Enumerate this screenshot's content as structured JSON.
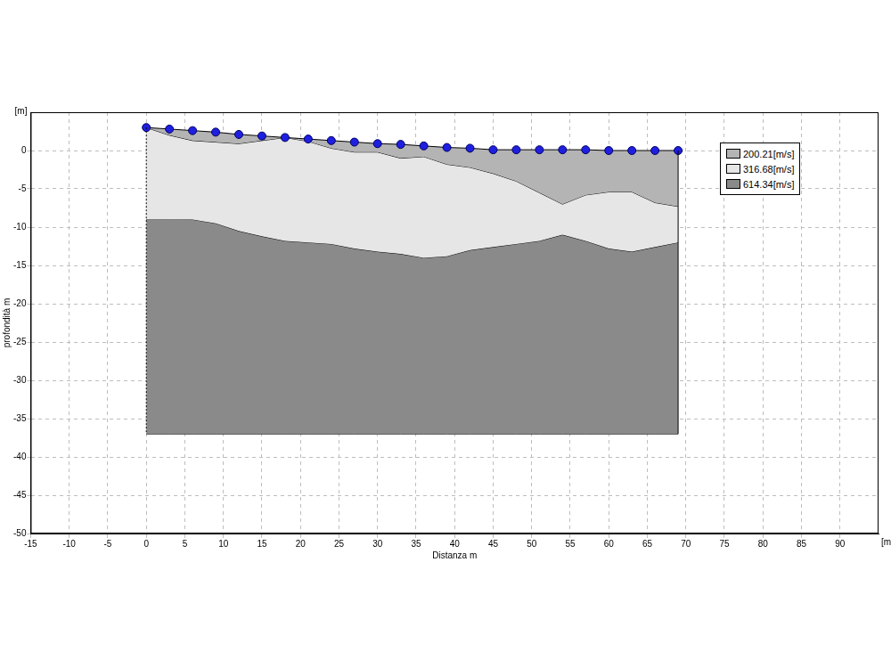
{
  "chart_data": {
    "type": "layered_section",
    "x_label": "Distanza m",
    "y_label": "profondità m",
    "axis_units": {
      "x": "[m]",
      "y": "[m]"
    },
    "xlim": [
      -15,
      95
    ],
    "xticks": [
      -15,
      -10,
      -5,
      0,
      5,
      10,
      15,
      20,
      25,
      30,
      35,
      40,
      45,
      50,
      55,
      60,
      65,
      70,
      75,
      80,
      85,
      90
    ],
    "ylim": [
      -50,
      5
    ],
    "yticks": [
      -50,
      -45,
      -40,
      -35,
      -30,
      -25,
      -20,
      -15,
      -10,
      -5,
      0
    ],
    "grid": true,
    "legend": "top-right",
    "x": [
      0,
      3,
      6,
      9,
      12,
      15,
      18,
      21,
      24,
      27,
      30,
      33,
      36,
      39,
      42,
      45,
      48,
      51,
      54,
      57,
      60,
      63,
      66,
      69
    ],
    "series": [
      {
        "name": "200.21[m/s]",
        "color": "#b4b4b4",
        "values": [
          3,
          2.8,
          2.6,
          2.4,
          2.1,
          1.9,
          1.7,
          1.5,
          1.3,
          1.1,
          0.9,
          0.8,
          0.6,
          0.4,
          0.3,
          0.1,
          0.1,
          0.1,
          0.1,
          0.1,
          0,
          0,
          0,
          0
        ]
      },
      {
        "name": "316.68[m/s]",
        "color": "#e6e6e6",
        "values": [
          3,
          2.0,
          1.3,
          1.1,
          0.9,
          1.3,
          1.7,
          1.2,
          0.3,
          -0.2,
          -0.2,
          -1.0,
          -0.8,
          -1.8,
          -2.2,
          -3.0,
          -4.0,
          -5.5,
          -7.0,
          -5.8,
          -5.4,
          -5.4,
          -6.8,
          -7.3
        ]
      },
      {
        "name": "614.34[m/s]",
        "color": "#8a8a8a",
        "values": [
          -9.0,
          -9.0,
          -9.0,
          -9.5,
          -10.5,
          -11.2,
          -11.8,
          -12.0,
          -12.2,
          -12.8,
          -13.2,
          -13.5,
          -14.0,
          -13.8,
          -13.0,
          -12.6,
          -12.2,
          -11.8,
          -11.0,
          -11.8,
          -12.8,
          -13.2,
          -12.6,
          -12.0
        ]
      }
    ],
    "base": -37,
    "geophones": {
      "color": "#1f1fe0",
      "marker": "circle",
      "x": [
        0,
        3,
        6,
        9,
        12,
        15,
        18,
        21,
        24,
        27,
        30,
        33,
        36,
        39,
        42,
        45,
        48,
        51,
        54,
        57,
        60,
        63,
        66,
        69
      ],
      "elevation": [
        3,
        2.8,
        2.6,
        2.4,
        2.1,
        1.9,
        1.7,
        1.5,
        1.3,
        1.1,
        0.9,
        0.8,
        0.6,
        0.4,
        0.3,
        0.1,
        0.1,
        0.1,
        0.1,
        0.1,
        0,
        0,
        0,
        0
      ]
    }
  }
}
